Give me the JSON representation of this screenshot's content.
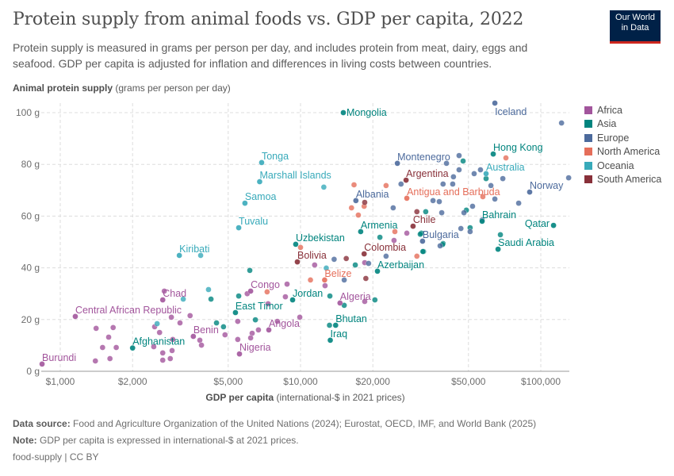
{
  "header": {
    "title": "Protein supply from animal foods vs. GDP per capita, 2022",
    "subtitle": "Protein supply is measured in grams per person per day, and includes protein from meat, dairy, eggs and seafood. GDP per capita is adjusted for inflation and differences in living costs between countries.",
    "logo_text_1": "Our World",
    "logo_text_2": "in Data"
  },
  "footer": {
    "source_label": "Data source:",
    "source_text": "Food and Agriculture Organization of the United Nations (2024); Eurostat, OECD, IMF, and World Bank (2025)",
    "note_label": "Note:",
    "note_text": "GDP per capita is expressed in international-$ at 2021 prices.",
    "credit": "food-supply | CC BY"
  },
  "chart_data": {
    "type": "scatter",
    "title": "Protein supply from animal foods vs. GDP per capita, 2022",
    "xlabel_bold": "GDP per capita",
    "xlabel_rest": "(international-$ in 2021 prices)",
    "ylabel_bold": "Animal protein supply",
    "ylabel_rest": "(grams per person per day)",
    "x_scale": "log",
    "xlim": [
      835,
      132000
    ],
    "ylim": [
      0,
      105
    ],
    "grid": true,
    "legend_position": "right",
    "x_ticks": [
      {
        "value": 1000,
        "label": "$1,000"
      },
      {
        "value": 2000,
        "label": "$2,000"
      },
      {
        "value": 5000,
        "label": "$5,000"
      },
      {
        "value": 10000,
        "label": "$10,000"
      },
      {
        "value": 20000,
        "label": "$20,000"
      },
      {
        "value": 50000,
        "label": "$50,000"
      },
      {
        "value": 100000,
        "label": "$100,000"
      }
    ],
    "y_ticks": [
      {
        "value": 0,
        "label": "0 g"
      },
      {
        "value": 20,
        "label": "20 g"
      },
      {
        "value": 40,
        "label": "40 g"
      },
      {
        "value": 60,
        "label": "60 g"
      },
      {
        "value": 80,
        "label": "80 g"
      },
      {
        "value": 100,
        "label": "100 g"
      }
    ],
    "regions": [
      {
        "name": "Africa",
        "color": "#a2559c"
      },
      {
        "name": "Asia",
        "color": "#00847e"
      },
      {
        "name": "Europe",
        "color": "#4c6a9c"
      },
      {
        "name": "North America",
        "color": "#e56e5a"
      },
      {
        "name": "Oceania",
        "color": "#38aaba"
      },
      {
        "name": "South America",
        "color": "#883039"
      }
    ],
    "labeled_points": [
      {
        "label": "Mongolia",
        "region": "Asia",
        "x": 15070,
        "y": 100
      },
      {
        "label": "Iceland",
        "region": "Europe",
        "x": 64400,
        "y": 103.7
      },
      {
        "label": "Hong Kong",
        "region": "Asia",
        "x": 63400,
        "y": 84
      },
      {
        "label": "Australia",
        "region": "Oceania",
        "x": 59200,
        "y": 76.4
      },
      {
        "label": "Norway",
        "region": "Europe",
        "x": 89900,
        "y": 69.3
      },
      {
        "label": "Qatar",
        "region": "Asia",
        "x": 113000,
        "y": 56.4
      },
      {
        "label": "Bahrain",
        "region": "Asia",
        "x": 57000,
        "y": 58
      },
      {
        "label": "Saudi Arabia",
        "region": "Asia",
        "x": 66400,
        "y": 47.2
      },
      {
        "label": "Montenegro",
        "region": "Europe",
        "x": 25300,
        "y": 80.4
      },
      {
        "label": "Argentina",
        "region": "South America",
        "x": 27500,
        "y": 73.9
      },
      {
        "label": "Antigua and Barbuda",
        "region": "North America",
        "x": 27700,
        "y": 66.9
      },
      {
        "label": "Albania",
        "region": "Europe",
        "x": 17000,
        "y": 66
      },
      {
        "label": "Chile",
        "region": "South America",
        "x": 29400,
        "y": 56.1
      },
      {
        "label": "Bulgaria",
        "region": "Europe",
        "x": 32200,
        "y": 50.3
      },
      {
        "label": "Armenia",
        "region": "Asia",
        "x": 17800,
        "y": 54
      },
      {
        "label": "Colombia",
        "region": "South America",
        "x": 18400,
        "y": 45.4
      },
      {
        "label": "Azerbaijan",
        "region": "Asia",
        "x": 20900,
        "y": 38.7
      },
      {
        "label": "Uzbekistan",
        "region": "Asia",
        "x": 9550,
        "y": 49.1
      },
      {
        "label": "Bolivia",
        "region": "South America",
        "x": 9700,
        "y": 42.3
      },
      {
        "label": "Belize",
        "region": "North America",
        "x": 12600,
        "y": 35.3
      },
      {
        "label": "Jordan",
        "region": "Asia",
        "x": 9270,
        "y": 27.6
      },
      {
        "label": "Algeria",
        "region": "Africa",
        "x": 14600,
        "y": 26.4
      },
      {
        "label": "Bhutan",
        "region": "Asia",
        "x": 14000,
        "y": 17.8
      },
      {
        "label": "Iraq",
        "region": "Asia",
        "x": 13300,
        "y": 12
      },
      {
        "label": "Congo",
        "region": "Africa",
        "x": 6200,
        "y": 31
      },
      {
        "label": "East Timor",
        "region": "Asia",
        "x": 5360,
        "y": 22.7
      },
      {
        "label": "Angola",
        "region": "Africa",
        "x": 7380,
        "y": 16
      },
      {
        "label": "Nigeria",
        "region": "Africa",
        "x": 5570,
        "y": 6.7
      },
      {
        "label": "Benin",
        "region": "Africa",
        "x": 3580,
        "y": 13.5
      },
      {
        "label": "Afghanistan",
        "region": "Asia",
        "x": 2000,
        "y": 9
      },
      {
        "label": "Chad",
        "region": "Africa",
        "x": 2670,
        "y": 27.6
      },
      {
        "label": "Central African Republic",
        "region": "Africa",
        "x": 1155,
        "y": 21.2
      },
      {
        "label": "Burundi",
        "region": "Africa",
        "x": 840,
        "y": 2.8
      },
      {
        "label": "Kiribati",
        "region": "Oceania",
        "x": 3130,
        "y": 44.8
      },
      {
        "label": "Tuvalu",
        "region": "Oceania",
        "x": 5530,
        "y": 55.5
      },
      {
        "label": "Samoa",
        "region": "Oceania",
        "x": 5870,
        "y": 65
      },
      {
        "label": "Tonga",
        "region": "Oceania",
        "x": 6890,
        "y": 80.7
      },
      {
        "label": "Marshall Islands",
        "region": "Oceania",
        "x": 6760,
        "y": 73.3
      }
    ],
    "other_points": [
      {
        "region": "Africa",
        "x": 1410,
        "y": 16.6
      },
      {
        "region": "Africa",
        "x": 1660,
        "y": 16.9
      },
      {
        "region": "Africa",
        "x": 1590,
        "y": 13.2
      },
      {
        "region": "Africa",
        "x": 1500,
        "y": 9.2
      },
      {
        "region": "Africa",
        "x": 1710,
        "y": 9.2
      },
      {
        "region": "Africa",
        "x": 1400,
        "y": 4.0
      },
      {
        "region": "Africa",
        "x": 1610,
        "y": 4.9
      },
      {
        "region": "Africa",
        "x": 2470,
        "y": 17.2
      },
      {
        "region": "Africa",
        "x": 2590,
        "y": 15.0
      },
      {
        "region": "Africa",
        "x": 2450,
        "y": 9.5
      },
      {
        "region": "Africa",
        "x": 2670,
        "y": 7.1
      },
      {
        "region": "Africa",
        "x": 2670,
        "y": 4.3
      },
      {
        "region": "Africa",
        "x": 2920,
        "y": 8.0
      },
      {
        "region": "Africa",
        "x": 2870,
        "y": 4.9
      },
      {
        "region": "Africa",
        "x": 2900,
        "y": 20.9
      },
      {
        "region": "Africa",
        "x": 3150,
        "y": 18.7
      },
      {
        "region": "Africa",
        "x": 2940,
        "y": 12.3
      },
      {
        "region": "Africa",
        "x": 3470,
        "y": 21.5
      },
      {
        "region": "Africa",
        "x": 3810,
        "y": 12.0
      },
      {
        "region": "Africa",
        "x": 3870,
        "y": 10.1
      },
      {
        "region": "Africa",
        "x": 4850,
        "y": 14.1
      },
      {
        "region": "Africa",
        "x": 5480,
        "y": 19.3
      },
      {
        "region": "Africa",
        "x": 5480,
        "y": 12.3
      },
      {
        "region": "Africa",
        "x": 6290,
        "y": 14.7
      },
      {
        "region": "Africa",
        "x": 6200,
        "y": 12.9
      },
      {
        "region": "Africa",
        "x": 6680,
        "y": 16.0
      },
      {
        "region": "Africa",
        "x": 6000,
        "y": 30.0
      },
      {
        "region": "Africa",
        "x": 8790,
        "y": 33.7
      },
      {
        "region": "Africa",
        "x": 8650,
        "y": 28.8
      },
      {
        "region": "Africa",
        "x": 7330,
        "y": 26.1
      },
      {
        "region": "Africa",
        "x": 9930,
        "y": 20.9
      },
      {
        "region": "Africa",
        "x": 8010,
        "y": 19.3
      },
      {
        "region": "Africa",
        "x": 12650,
        "y": 33.1
      },
      {
        "region": "Africa",
        "x": 11450,
        "y": 41.1
      },
      {
        "region": "Africa",
        "x": 18500,
        "y": 42.0
      },
      {
        "region": "Africa",
        "x": 24500,
        "y": 50.6
      },
      {
        "region": "Africa",
        "x": 27700,
        "y": 53.4
      },
      {
        "region": "Africa",
        "x": 18500,
        "y": 27.0
      },
      {
        "region": "Africa",
        "x": 2710,
        "y": 31.0
      },
      {
        "region": "Asia",
        "x": 6150,
        "y": 39.0
      },
      {
        "region": "Asia",
        "x": 5530,
        "y": 29.1
      },
      {
        "region": "Asia",
        "x": 4240,
        "y": 27.9
      },
      {
        "region": "Asia",
        "x": 4470,
        "y": 18.7
      },
      {
        "region": "Asia",
        "x": 4780,
        "y": 17.2
      },
      {
        "region": "Asia",
        "x": 6490,
        "y": 19.9
      },
      {
        "region": "Asia",
        "x": 13250,
        "y": 29.1
      },
      {
        "region": "Asia",
        "x": 15200,
        "y": 25.5
      },
      {
        "region": "Asia",
        "x": 20400,
        "y": 27.6
      },
      {
        "region": "Asia",
        "x": 21400,
        "y": 51.8
      },
      {
        "region": "Asia",
        "x": 16900,
        "y": 41.1
      },
      {
        "region": "Asia",
        "x": 32500,
        "y": 46.3
      },
      {
        "region": "Asia",
        "x": 31800,
        "y": 53.4
      },
      {
        "region": "Asia",
        "x": 33200,
        "y": 61.7
      },
      {
        "region": "Asia",
        "x": 39200,
        "y": 49.4
      },
      {
        "region": "Asia",
        "x": 47500,
        "y": 81.3
      },
      {
        "region": "Asia",
        "x": 59200,
        "y": 74.5
      },
      {
        "region": "Asia",
        "x": 49000,
        "y": 62.3
      },
      {
        "region": "Asia",
        "x": 50800,
        "y": 55.5
      },
      {
        "region": "Asia",
        "x": 67900,
        "y": 52.8
      },
      {
        "region": "Asia",
        "x": 39000,
        "y": 49.0
      },
      {
        "region": "Asia",
        "x": 32300,
        "y": 46.3
      },
      {
        "region": "Asia",
        "x": 31500,
        "y": 53.0
      },
      {
        "region": "Asia",
        "x": 13200,
        "y": 17.8
      },
      {
        "region": "Europe",
        "x": 122000,
        "y": 96
      },
      {
        "region": "Europe",
        "x": 130600,
        "y": 74.8
      },
      {
        "region": "Europe",
        "x": 45700,
        "y": 83.4
      },
      {
        "region": "Europe",
        "x": 40500,
        "y": 80.4
      },
      {
        "region": "Europe",
        "x": 45700,
        "y": 77.9
      },
      {
        "region": "Europe",
        "x": 43300,
        "y": 75.2
      },
      {
        "region": "Europe",
        "x": 52800,
        "y": 76.4
      },
      {
        "region": "Europe",
        "x": 56100,
        "y": 77.9
      },
      {
        "region": "Europe",
        "x": 69500,
        "y": 74.5
      },
      {
        "region": "Europe",
        "x": 39200,
        "y": 72.4
      },
      {
        "region": "Europe",
        "x": 43000,
        "y": 72.4
      },
      {
        "region": "Europe",
        "x": 62000,
        "y": 71.8
      },
      {
        "region": "Europe",
        "x": 35600,
        "y": 66.0
      },
      {
        "region": "Europe",
        "x": 37800,
        "y": 65.6
      },
      {
        "region": "Europe",
        "x": 64400,
        "y": 66.6
      },
      {
        "region": "Europe",
        "x": 80900,
        "y": 65.0
      },
      {
        "region": "Europe",
        "x": 52000,
        "y": 63.8
      },
      {
        "region": "Europe",
        "x": 38700,
        "y": 61.3
      },
      {
        "region": "Europe",
        "x": 47900,
        "y": 61.3
      },
      {
        "region": "Europe",
        "x": 46500,
        "y": 55.2
      },
      {
        "region": "Europe",
        "x": 50800,
        "y": 54.0
      },
      {
        "region": "Europe",
        "x": 57000,
        "y": 58.5
      },
      {
        "region": "Europe",
        "x": 38100,
        "y": 48.5
      },
      {
        "region": "Europe",
        "x": 24300,
        "y": 63.2
      },
      {
        "region": "Europe",
        "x": 26200,
        "y": 72.4
      },
      {
        "region": "Europe",
        "x": 22700,
        "y": 44.5
      },
      {
        "region": "Europe",
        "x": 19200,
        "y": 41.7
      },
      {
        "region": "Europe",
        "x": 15200,
        "y": 35.3
      },
      {
        "region": "Europe",
        "x": 13800,
        "y": 43.3
      },
      {
        "region": "North America",
        "x": 71600,
        "y": 82.5
      },
      {
        "region": "North America",
        "x": 57400,
        "y": 67.5
      },
      {
        "region": "North America",
        "x": 24700,
        "y": 54.0
      },
      {
        "region": "North America",
        "x": 22700,
        "y": 71.8
      },
      {
        "region": "North America",
        "x": 16700,
        "y": 72.1
      },
      {
        "region": "North America",
        "x": 16300,
        "y": 63.2
      },
      {
        "region": "North America",
        "x": 18400,
        "y": 63.8
      },
      {
        "region": "North America",
        "x": 17400,
        "y": 60.4
      },
      {
        "region": "North America",
        "x": 30500,
        "y": 44.5
      },
      {
        "region": "North America",
        "x": 10000,
        "y": 47.9
      },
      {
        "region": "North America",
        "x": 11000,
        "y": 35.3
      },
      {
        "region": "North America",
        "x": 7260,
        "y": 30.7
      },
      {
        "region": "South America",
        "x": 30500,
        "y": 61.7
      },
      {
        "region": "South America",
        "x": 18500,
        "y": 65.3
      },
      {
        "region": "South America",
        "x": 15500,
        "y": 43.6
      },
      {
        "region": "South America",
        "x": 18700,
        "y": 35.9
      },
      {
        "region": "Oceania",
        "x": 3840,
        "y": 44.8
      },
      {
        "region": "Oceania",
        "x": 4140,
        "y": 31.6
      },
      {
        "region": "Oceania",
        "x": 3250,
        "y": 27.9
      },
      {
        "region": "Oceania",
        "x": 2530,
        "y": 18.4
      },
      {
        "region": "Oceania",
        "x": 12500,
        "y": 71.2
      },
      {
        "region": "Oceania",
        "x": 12800,
        "y": 39.9
      }
    ]
  }
}
